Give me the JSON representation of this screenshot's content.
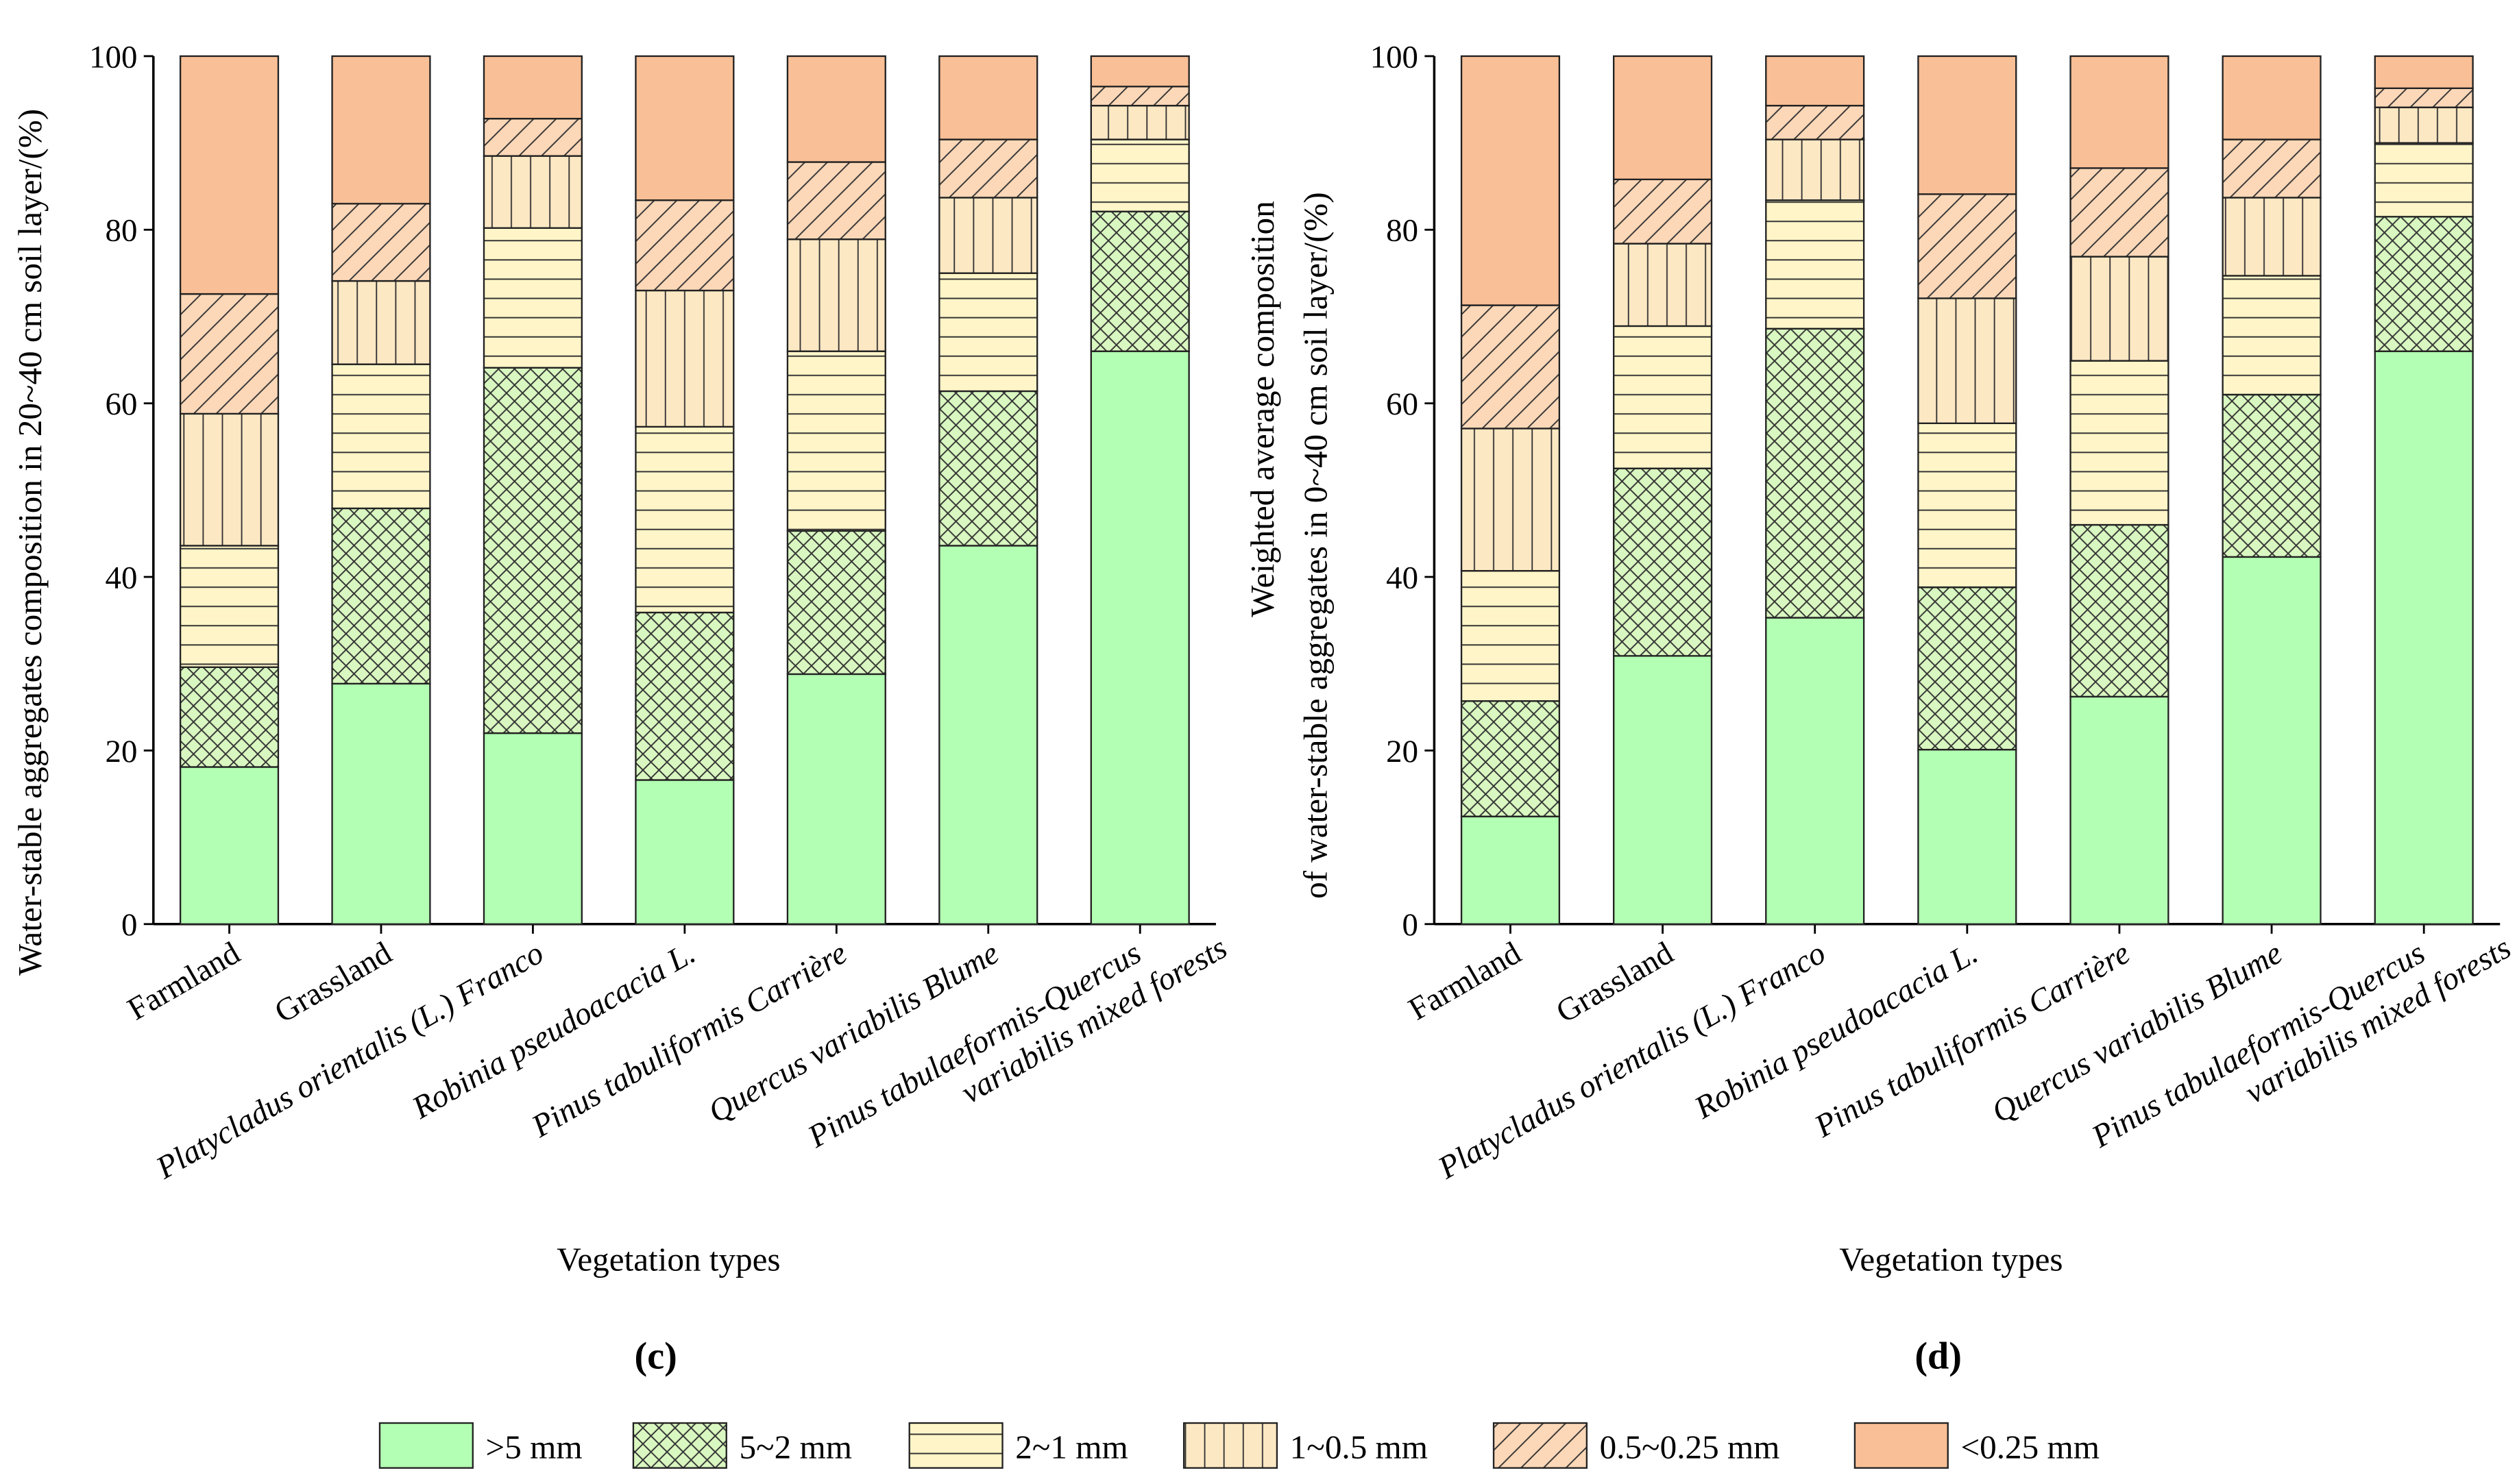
{
  "legend": {
    "items": [
      ">5 mm",
      "5~2 mm",
      "2~1 mm",
      "1~0.5 mm",
      "0.5~0.25 mm",
      "<0.25 mm"
    ],
    "colors": [
      "#b3ffb3",
      "#d9f7c0",
      "#fff5c8",
      "#fde8c4",
      "#fcd8b8",
      "#f9bf96"
    ],
    "patterns": [
      "solid",
      "crosshatch",
      "horizontal",
      "vertical",
      "diagonal",
      "solid"
    ]
  },
  "chart_data": [
    {
      "type": "bar",
      "stacked": true,
      "panel_label": "(c)",
      "xlabel": "Vegetation types",
      "ylabel": [
        "Water-stable aggregates composition in 20~40 cm soil layer/(%)"
      ],
      "ylim": [
        0,
        100
      ],
      "yticks": [
        "0",
        "20",
        "40",
        "60",
        "80",
        "100"
      ],
      "categories": [
        [
          "Farmland"
        ],
        [
          "Grassland"
        ],
        [
          "Platycladus orientalis (L.) Franco"
        ],
        [
          "Robinia pseudoacacia L."
        ],
        [
          "Pinus tabuliformis Carrière"
        ],
        [
          "Quercus variabilis Blume"
        ],
        [
          "Pinus tabulaeformis-Quercus",
          "variabilis mixed forests"
        ]
      ],
      "italic": [
        false,
        false,
        true,
        true,
        true,
        true,
        true
      ],
      "series": [
        {
          "name": ">5 mm",
          "values": [
            18.1,
            27.7,
            22.0,
            16.6,
            28.8,
            43.6,
            66.0
          ]
        },
        {
          "name": "5~2 mm",
          "values": [
            11.5,
            20.2,
            42.1,
            19.3,
            16.5,
            17.8,
            16.1
          ]
        },
        {
          "name": "2~1 mm",
          "values": [
            14.0,
            16.6,
            16.1,
            21.4,
            20.7,
            13.6,
            8.3
          ]
        },
        {
          "name": "1~0.5 mm",
          "values": [
            15.2,
            9.6,
            8.3,
            15.7,
            12.9,
            8.7,
            3.9
          ]
        },
        {
          "name": "0.5~0.25 mm",
          "values": [
            13.8,
            8.9,
            4.3,
            10.4,
            8.9,
            6.7,
            2.2
          ]
        },
        {
          "name": "<0.25 mm",
          "values": [
            27.4,
            17.0,
            7.2,
            16.6,
            12.2,
            9.6,
            3.5
          ]
        }
      ]
    },
    {
      "type": "bar",
      "stacked": true,
      "panel_label": "(d)",
      "xlabel": "Vegetation types",
      "ylabel": [
        "Weighted average composition",
        "of water-stable aggregates in 0~40 cm soil layer/(%)"
      ],
      "ylim": [
        0,
        100
      ],
      "yticks": [
        "0",
        "20",
        "40",
        "60",
        "80",
        "100"
      ],
      "categories": [
        [
          "Farmland"
        ],
        [
          "Grassland"
        ],
        [
          "Platycladus orientalis (L.) Franco"
        ],
        [
          "Robinia pseudoacacia L."
        ],
        [
          "Pinus tabuliformis Carrière"
        ],
        [
          "Quercus variabilis Blume"
        ],
        [
          "Pinus tabulaeformis-Quercus",
          "variabilis mixed forests"
        ]
      ],
      "italic": [
        false,
        false,
        true,
        true,
        true,
        true,
        true
      ],
      "series": [
        {
          "name": ">5 mm",
          "values": [
            12.4,
            30.9,
            35.3,
            20.1,
            26.2,
            42.3,
            66.0
          ]
        },
        {
          "name": "5~2 mm",
          "values": [
            13.3,
            21.6,
            33.3,
            18.7,
            19.8,
            18.7,
            15.5
          ]
        },
        {
          "name": "2~1 mm",
          "values": [
            15.0,
            16.4,
            14.8,
            18.9,
            18.9,
            13.7,
            8.5
          ]
        },
        {
          "name": "1~0.5 mm",
          "values": [
            16.4,
            9.5,
            7.0,
            14.4,
            12.0,
            9.0,
            4.1
          ]
        },
        {
          "name": "0.5~0.25 mm",
          "values": [
            14.2,
            7.4,
            3.9,
            12.0,
            10.2,
            6.7,
            2.2
          ]
        },
        {
          "name": "<0.25 mm",
          "values": [
            28.7,
            14.2,
            5.7,
            15.9,
            12.9,
            9.6,
            3.7
          ]
        }
      ]
    }
  ]
}
